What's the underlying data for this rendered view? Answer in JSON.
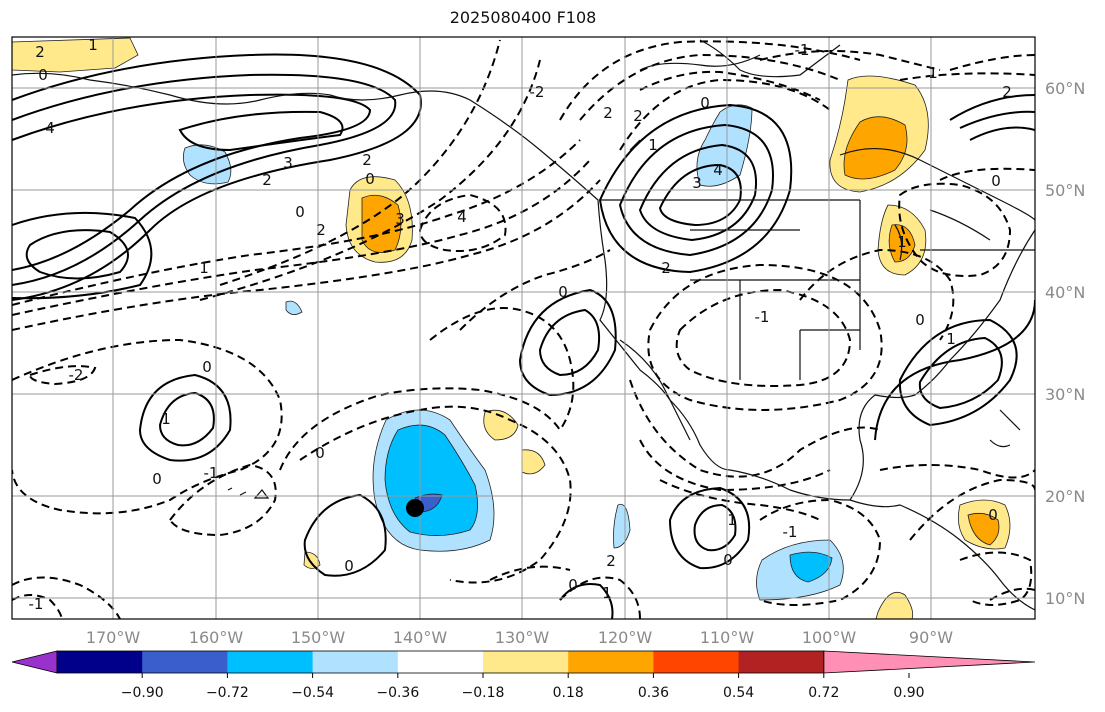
{
  "title": "2025080400 F108",
  "lat_labels": [
    "60°N",
    "50°N",
    "40°N",
    "30°N",
    "20°N",
    "10°N"
  ],
  "lon_labels": [
    "170°W",
    "160°W",
    "150°W",
    "140°W",
    "130°W",
    "120°W",
    "110°W",
    "100°W",
    "90°W"
  ],
  "colorbar": {
    "ticks": [
      "−0.90",
      "−0.72",
      "−0.54",
      "−0.36",
      "−0.18",
      "0.18",
      "0.36",
      "0.54",
      "0.72",
      "0.90"
    ],
    "colors": [
      "#9932cc",
      "#00008b",
      "#3a5fcd",
      "#00bfff",
      "#b0e2ff",
      "#ffffff",
      "#ffe98a",
      "#ffa500",
      "#ff4500",
      "#b22222",
      "#ff8fb4"
    ]
  },
  "contour_labels": [
    "2",
    "1",
    "0",
    "4",
    "3",
    "2",
    "0",
    "3",
    "4",
    "2",
    "0",
    "1",
    "2",
    "-2",
    "0",
    "1",
    "0",
    "-1",
    "0",
    "3",
    "4",
    "2",
    "0",
    "2",
    "-1",
    "-2",
    "2",
    "0",
    "1",
    "2",
    "1",
    "0",
    "-1",
    "0",
    "1",
    "0",
    "0",
    "-1",
    "1",
    "0",
    "1",
    "0",
    "-1",
    "2",
    "1"
  ],
  "marker": "black-dot"
}
